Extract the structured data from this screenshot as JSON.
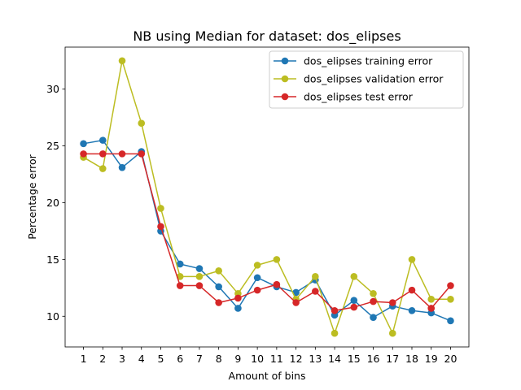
{
  "chart_data": {
    "type": "line",
    "title": "NB using Median for dataset: dos_elipses",
    "xlabel": "Amount of bins",
    "ylabel": "Percentage error",
    "x": [
      1,
      2,
      3,
      4,
      5,
      6,
      7,
      8,
      9,
      10,
      11,
      12,
      13,
      14,
      15,
      16,
      17,
      18,
      19,
      20
    ],
    "xlim": [
      0.05,
      20.95
    ],
    "ylim": [
      7.3,
      33.7
    ],
    "yticks": [
      10,
      15,
      20,
      25,
      30
    ],
    "grid": false,
    "legend_position": "upper right",
    "series": [
      {
        "name": "dos_elipses training error",
        "color": "#1f77b4",
        "values": [
          25.2,
          25.5,
          23.1,
          24.5,
          17.5,
          14.6,
          14.2,
          12.6,
          10.7,
          13.4,
          12.6,
          12.1,
          13.2,
          10.1,
          11.4,
          9.9,
          10.9,
          10.5,
          10.3,
          9.6
        ]
      },
      {
        "name": "dos_elipses validation error",
        "color": "#bcbd22",
        "values": [
          24.0,
          23.0,
          32.5,
          27.0,
          19.5,
          13.5,
          13.5,
          14.0,
          12.0,
          14.5,
          15.0,
          11.5,
          13.5,
          8.5,
          13.5,
          12.0,
          8.5,
          15.0,
          11.5,
          11.5
        ]
      },
      {
        "name": "dos_elipses test error",
        "color": "#d62728",
        "values": [
          24.3,
          24.3,
          24.3,
          24.3,
          17.9,
          12.7,
          12.7,
          11.2,
          11.6,
          12.3,
          12.8,
          11.2,
          12.2,
          10.5,
          10.8,
          11.3,
          11.2,
          12.3,
          10.7,
          12.7
        ]
      }
    ]
  }
}
